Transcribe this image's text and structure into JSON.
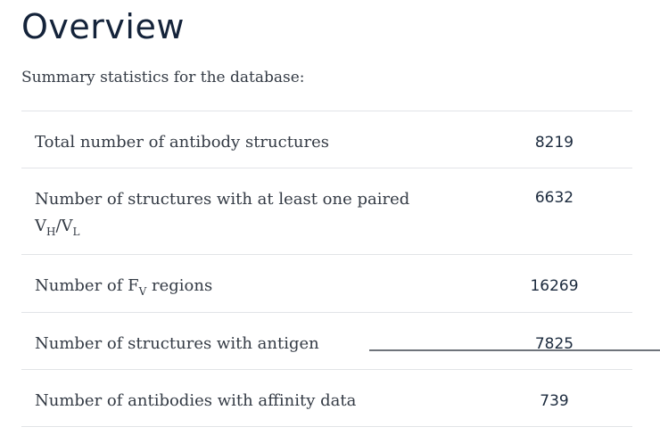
{
  "page": {
    "title": "Overview",
    "subtitle": "Summary statistics for the database:"
  },
  "stats": [
    {
      "label": "Total number of antibody structures",
      "value": "8219"
    },
    {
      "label_prefix": "Number of structures with at least one paired",
      "label_v1": "V",
      "label_sub1": "H",
      "label_sep": "/V",
      "label_sub2": "L",
      "value": "6632"
    },
    {
      "label_before": "Number of F",
      "label_sub": "V",
      "label_after": " regions",
      "value": "16269"
    },
    {
      "label": "Number of structures with antigen",
      "value": "7825"
    },
    {
      "label": "Number of antibodies with affinity data",
      "value": "739"
    }
  ]
}
